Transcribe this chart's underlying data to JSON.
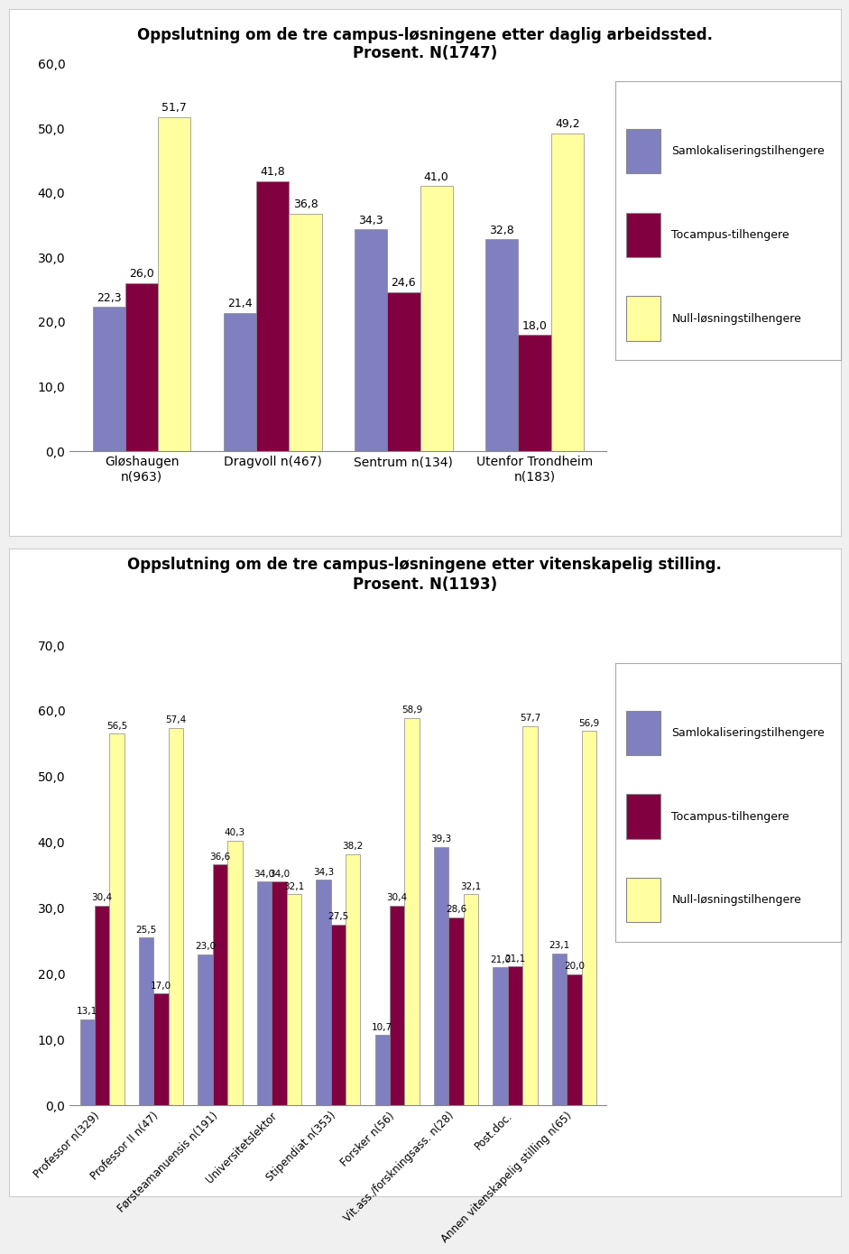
{
  "chart1": {
    "title": "Oppslutning om de tre campus-løsningene etter daglig arbeidssted.\nProsent. N(1747)",
    "categories": [
      "Gløshaugen\nn(963)",
      "Dragvoll n(467)",
      "Sentrum n(134)",
      "Utenfor Trondheim\nn(183)"
    ],
    "samlo": [
      22.3,
      21.4,
      34.3,
      32.8
    ],
    "tocampus": [
      26.0,
      41.8,
      24.6,
      18.0
    ],
    "null": [
      51.7,
      36.8,
      41.0,
      49.2
    ],
    "ylim": [
      0,
      60
    ],
    "yticks": [
      0,
      10,
      20,
      30,
      40,
      50,
      60
    ],
    "ytick_labels": [
      "0,0",
      "10,0",
      "20,0",
      "30,0",
      "40,0",
      "50,0",
      "60,0"
    ]
  },
  "chart2": {
    "title": "Oppslutning om de tre campus-løsningene etter vitenskapelig stilling.\nProsent. N(1193)",
    "categories": [
      "Professor n(329)",
      "Professor II n(47)",
      "Førsteamanuensis n(191)",
      "Universitetslektor",
      "Stipendiat n(353)",
      "Forsker n(56)",
      "Vit.ass./forskningsass. n(28)",
      "Post.doc.",
      "Annen vitenskapelig stilling n(65)"
    ],
    "samlo": [
      13.1,
      25.5,
      23.0,
      34.0,
      34.3,
      10.7,
      39.3,
      21.0,
      23.1
    ],
    "tocampus": [
      30.4,
      17.0,
      36.6,
      34.0,
      27.5,
      30.4,
      28.6,
      21.1,
      20.0
    ],
    "null": [
      56.5,
      57.4,
      40.3,
      32.1,
      38.2,
      58.9,
      32.1,
      57.7,
      56.9
    ],
    "ylim": [
      0,
      70
    ],
    "yticks": [
      0,
      10,
      20,
      30,
      40,
      50,
      60,
      70
    ],
    "ytick_labels": [
      "0,0",
      "10,0",
      "20,0",
      "30,0",
      "40,0",
      "50,0",
      "60,0",
      "70,0"
    ]
  },
  "colors": {
    "samlo": "#8080c0",
    "tocampus": "#800040",
    "null": "#ffffa0"
  },
  "legend_labels": [
    "Samlokaliseringstilhengere",
    "Tocampus-tilhengere",
    "Null-løsningstilhengere"
  ],
  "bar_width": 0.25,
  "background_color": "#f0f0f0",
  "plot_bg": "#ffffff"
}
